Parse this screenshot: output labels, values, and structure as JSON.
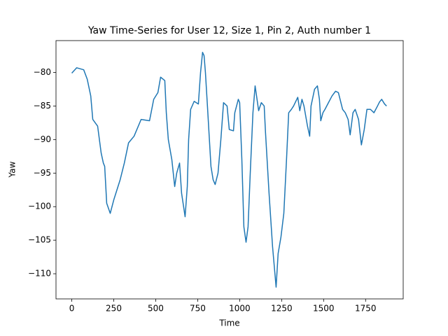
{
  "chart_data": {
    "type": "line",
    "title": "Yaw Time-Series for User 12, Size 1, Pin 2, Auth number 1",
    "x_label": "Time",
    "y_label": "Yaw",
    "x": [
      0,
      29,
      71,
      92,
      113,
      125,
      154,
      175,
      188,
      196,
      208,
      229,
      250,
      288,
      313,
      338,
      371,
      413,
      463,
      488,
      513,
      529,
      554,
      563,
      575,
      596,
      613,
      625,
      642,
      654,
      675,
      688,
      696,
      708,
      729,
      754,
      767,
      779,
      788,
      796,
      808,
      829,
      842,
      854,
      871,
      888,
      904,
      925,
      938,
      963,
      971,
      992,
      1000,
      1013,
      1025,
      1038,
      1050,
      1063,
      1079,
      1092,
      1113,
      1129,
      1146,
      1154,
      1175,
      1196,
      1217,
      1229,
      1246,
      1263,
      1279,
      1292,
      1308,
      1321,
      1346,
      1358,
      1371,
      1383,
      1404,
      1417,
      1425,
      1446,
      1463,
      1475,
      1483,
      1496,
      1508,
      1529,
      1550,
      1571,
      1588,
      1613,
      1629,
      1646,
      1658,
      1675,
      1688,
      1708,
      1725,
      1742,
      1758,
      1779,
      1800,
      1821,
      1833,
      1846,
      1863,
      1875
    ],
    "series": [
      {
        "color": "#1f77b4",
        "values": [
          -80.1,
          -79.3,
          -79.6,
          -81,
          -83.5,
          -87,
          -88,
          -92,
          -93.5,
          -94,
          -99.5,
          -101,
          -99,
          -96,
          -93.5,
          -90.5,
          -89.5,
          -87,
          -87.2,
          -84,
          -83,
          -80.7,
          -81.2,
          -86,
          -90,
          -93,
          -97,
          -95,
          -93.5,
          -98,
          -101.5,
          -97,
          -90,
          -85.5,
          -84.3,
          -84.7,
          -80,
          -77,
          -77.5,
          -80,
          -85,
          -94,
          -96,
          -96.7,
          -95,
          -90,
          -84.5,
          -85,
          -88.5,
          -88.7,
          -86,
          -84,
          -84.5,
          -93,
          -103,
          -105.3,
          -103,
          -95,
          -86,
          -82,
          -85.7,
          -84.5,
          -85,
          -89,
          -98,
          -106,
          -112,
          -107,
          -104.5,
          -101,
          -93,
          -86,
          -85.5,
          -85,
          -83.7,
          -85.7,
          -84,
          -85,
          -88,
          -89.5,
          -85,
          -82.5,
          -82,
          -84,
          -87.2,
          -86,
          -85.5,
          -84.5,
          -83.5,
          -82.8,
          -83,
          -85.5,
          -86,
          -87,
          -89.3,
          -86,
          -85.5,
          -87,
          -90.8,
          -88.5,
          -85.5,
          -85.5,
          -86,
          -85,
          -84.4,
          -84,
          -84.7,
          -85
        ]
      }
    ],
    "xlim": [
      -94,
      1974
    ],
    "ylim": [
      -113.75,
      -75.25
    ],
    "xticks": [
      0,
      250,
      500,
      750,
      1000,
      1250,
      1500,
      1750
    ],
    "yticks": [
      {
        "value": -110,
        "label": "−110"
      },
      {
        "value": -105,
        "label": "−105"
      },
      {
        "value": -100,
        "label": "−100"
      },
      {
        "value": -95,
        "label": "−95"
      },
      {
        "value": -90,
        "label": "−90"
      },
      {
        "value": -85,
        "label": "−85"
      },
      {
        "value": -80,
        "label": "−80"
      }
    ],
    "grid": false
  }
}
